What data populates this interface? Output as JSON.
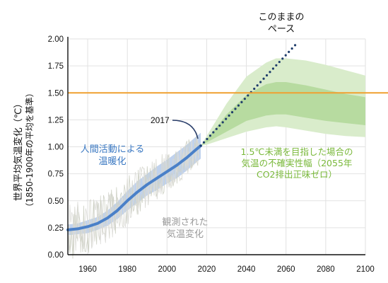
{
  "chart_data": {
    "type": "line",
    "ylabel_line1": "世界平均気温変化（℃）",
    "ylabel_line2": "（1850-1900年の平均を基準）",
    "xlim": [
      1950,
      2100
    ],
    "ylim": [
      0,
      2
    ],
    "x_ticks": [
      "1960",
      "1980",
      "2000",
      "2020",
      "2040",
      "2060",
      "2080",
      "2100"
    ],
    "y_ticks": [
      "0.00",
      "0.25",
      "0.50",
      "0.75",
      "1.00",
      "1.25",
      "1.50",
      "1.75",
      "2.00"
    ],
    "grid": true,
    "reference_line": {
      "value": 1.5,
      "color": "#f0a030"
    },
    "annotations": {
      "year_2017": "2017",
      "human_line1": "人間活動による",
      "human_line2": "温暖化",
      "observed_line1": "観測された",
      "observed_line2": "気温変化",
      "pace_line1": "このままの",
      "pace_line2": "ペース",
      "range_line1": "1.5℃未満を目指した場合の",
      "range_line2": "気温の不確実性幅（2055年",
      "range_line3": "CO2排出正味ゼロ）"
    },
    "series": [
      {
        "key": "human_induced",
        "color": "#4a80c8",
        "x": [
          1950,
          1955,
          1960,
          1965,
          1970,
          1975,
          1980,
          1985,
          1990,
          1995,
          2000,
          2005,
          2010,
          2015,
          2017
        ],
        "y": [
          0.23,
          0.24,
          0.26,
          0.29,
          0.34,
          0.41,
          0.5,
          0.58,
          0.65,
          0.71,
          0.77,
          0.83,
          0.9,
          0.98,
          1.01
        ],
        "band_width": [
          0.05,
          0.05,
          0.06,
          0.06,
          0.07,
          0.08,
          0.09,
          0.1,
          0.1,
          0.11,
          0.11,
          0.12,
          0.12,
          0.12,
          0.12
        ]
      },
      {
        "key": "current_pace",
        "color": "#1f3d6b",
        "x": [
          2017,
          2065
        ],
        "y": [
          1.01,
          1.95
        ]
      },
      {
        "key": "range_1_5",
        "outer_color": "#d9eccb",
        "inner_color": "#b7dba0",
        "x": [
          2017,
          2020,
          2030,
          2040,
          2050,
          2055,
          2060,
          2070,
          2080,
          2090,
          2100
        ],
        "outer_low": [
          1.01,
          1.02,
          1.08,
          1.14,
          1.18,
          1.19,
          1.18,
          1.15,
          1.12,
          1.1,
          1.09
        ],
        "outer_high": [
          1.01,
          1.1,
          1.4,
          1.65,
          1.78,
          1.82,
          1.82,
          1.8,
          1.76,
          1.71,
          1.66
        ],
        "inner_low": [
          1.01,
          1.04,
          1.14,
          1.24,
          1.29,
          1.3,
          1.3,
          1.27,
          1.24,
          1.22,
          1.2
        ],
        "inner_high": [
          1.01,
          1.07,
          1.3,
          1.48,
          1.58,
          1.6,
          1.6,
          1.57,
          1.53,
          1.49,
          1.46
        ]
      }
    ]
  }
}
